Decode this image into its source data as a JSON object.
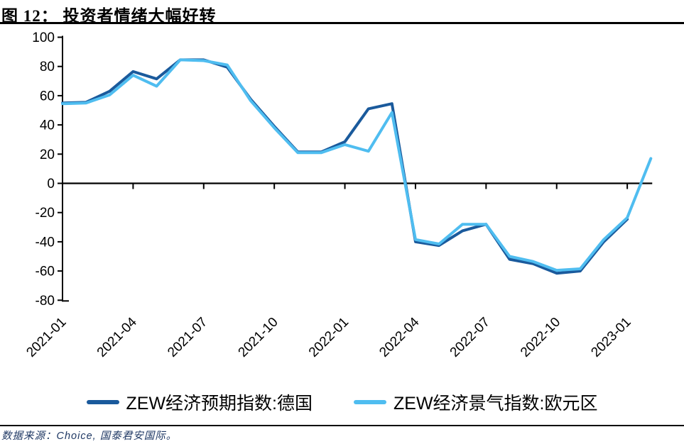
{
  "header": {
    "title": "图 12：  投资者情绪大幅好转"
  },
  "chart_data": {
    "type": "line",
    "title": "投资者情绪大幅好转",
    "x": [
      "2021-01",
      "2021-02",
      "2021-03",
      "2021-04",
      "2021-05",
      "2021-06",
      "2021-07",
      "2021-08",
      "2021-09",
      "2021-10",
      "2021-11",
      "2021-12",
      "2022-01",
      "2022-02",
      "2022-03",
      "2022-04",
      "2022-05",
      "2022-06",
      "2022-07",
      "2022-08",
      "2022-09",
      "2022-10",
      "2022-11",
      "2022-12",
      "2023-01",
      "2023-02"
    ],
    "x_tick_labels": [
      "2021-01",
      "2021-04",
      "2021-07",
      "2021-10",
      "2022-01",
      "2022-04",
      "2022-07",
      "2022-10",
      "2023-01"
    ],
    "tick_every": 3,
    "ylim": [
      -80,
      100
    ],
    "yticks": [
      100,
      80,
      60,
      40,
      20,
      0,
      -20,
      -40,
      -60,
      -80
    ],
    "grid": false,
    "legend_position": "bottom",
    "series": [
      {
        "name": "ZEW经济预期指数:德国",
        "color": "#1a5a9c",
        "values": [
          55,
          55.5,
          63,
          76.5,
          71.5,
          84.5,
          84.5,
          79.5,
          57.5,
          39,
          21.5,
          21.5,
          28.5,
          51,
          54.5,
          -40,
          -42.5,
          -32.5,
          -28,
          -52,
          -55,
          -61.5,
          -60,
          -40,
          -24.5,
          null
        ]
      },
      {
        "name": "ZEW经济景气指数:欧元区",
        "color": "#4fbdf0",
        "values": [
          54.5,
          55,
          60.5,
          74,
          66.5,
          84.5,
          84,
          81,
          56.5,
          38,
          21,
          21,
          26.5,
          22,
          48.5,
          -38.5,
          -41.5,
          -28,
          -28,
          -50,
          -53.5,
          -59.5,
          -58.5,
          -38.5,
          -23.5,
          17
        ]
      }
    ]
  },
  "footer": {
    "source": "数据来源：Choice, 国泰君安国际。"
  }
}
